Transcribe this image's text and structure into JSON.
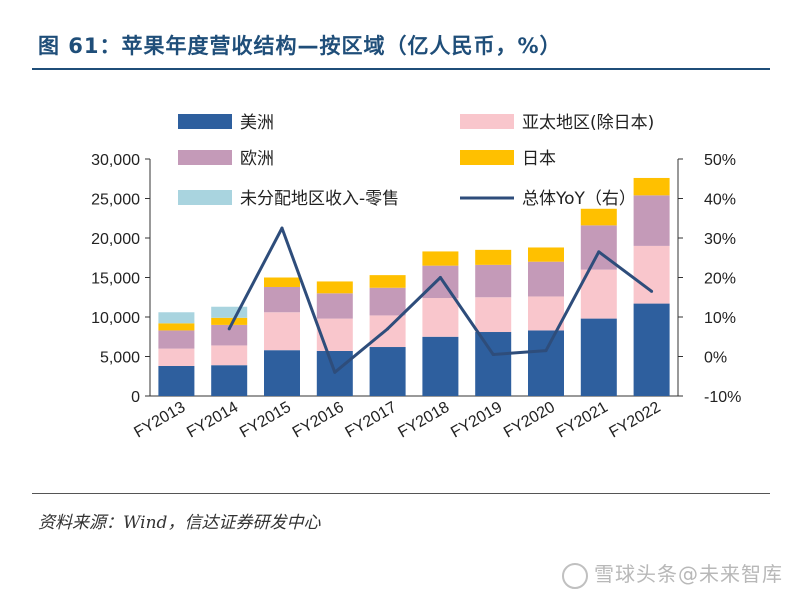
{
  "title": "图 61：苹果年度营收结构—按区域（亿人民币，%）",
  "source": "资料来源：Wind，信达证券研发中心",
  "watermark": "雪球头条@未来智库",
  "chart_data": {
    "type": "bar",
    "stacked": true,
    "categories": [
      "FY2013",
      "FY2014",
      "FY2015",
      "FY2016",
      "FY2017",
      "FY2018",
      "FY2019",
      "FY2020",
      "FY2021",
      "FY2022"
    ],
    "series": [
      {
        "name": "美洲",
        "color": "#2e5f9e",
        "values": [
          3800,
          3900,
          5800,
          5700,
          6200,
          7500,
          8100,
          8300,
          9800,
          11700
        ]
      },
      {
        "name": "亚太地区(除日本)",
        "color": "#f9c6cc",
        "values": [
          2200,
          2500,
          4800,
          4100,
          4000,
          4900,
          4400,
          4300,
          6200,
          7300
        ]
      },
      {
        "name": "欧洲",
        "color": "#c49ab8",
        "values": [
          2300,
          2600,
          3200,
          3200,
          3500,
          4100,
          4100,
          4400,
          5600,
          6400
        ]
      },
      {
        "name": "日本",
        "color": "#ffc000",
        "values": [
          900,
          900,
          1200,
          1500,
          1600,
          1800,
          1900,
          1800,
          2100,
          2200
        ]
      },
      {
        "name": "未分配地区收入-零售",
        "color": "#a9d4df",
        "values": [
          1400,
          1400,
          0,
          0,
          0,
          0,
          0,
          0,
          0,
          0
        ]
      }
    ],
    "line": {
      "name": "总体YoY（右）",
      "color": "#2e4d7b",
      "x": [
        "FY2014",
        "FY2015",
        "FY2016",
        "FY2017",
        "FY2018",
        "FY2019",
        "FY2020",
        "FY2021",
        "FY2022"
      ],
      "values": [
        7,
        32.5,
        -4,
        7,
        20,
        0.5,
        1.5,
        26.5,
        16.5
      ]
    },
    "y_left": {
      "min": 0,
      "max": 30000,
      "ticks": [
        "0",
        "5,000",
        "10,000",
        "15,000",
        "20,000",
        "25,000",
        "30,000"
      ]
    },
    "y_right": {
      "min": -10,
      "max": 50,
      "ticks": [
        "-10%",
        "0%",
        "10%",
        "20%",
        "30%",
        "40%",
        "50%"
      ]
    },
    "legend_position": "top"
  }
}
